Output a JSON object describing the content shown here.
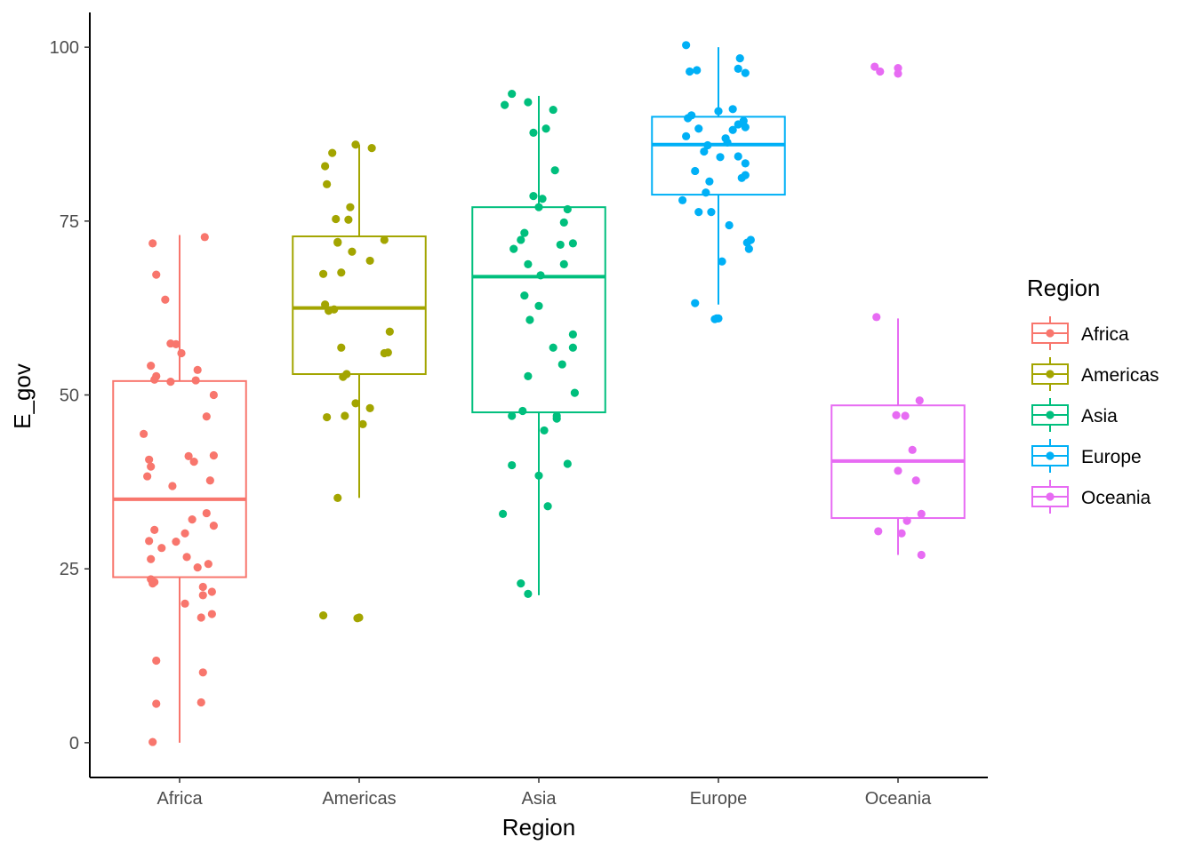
{
  "chart_data": {
    "type": "boxplot",
    "xlabel": "Region",
    "ylabel": "E_gov",
    "ylim": [
      -5,
      105
    ],
    "yticks": [
      0,
      25,
      50,
      75,
      100
    ],
    "grid": false,
    "legend": {
      "title": "Region",
      "position": "right"
    },
    "categories": [
      "Africa",
      "Americas",
      "Asia",
      "Europe",
      "Oceania"
    ],
    "colors": {
      "Africa": "#F8766D",
      "Americas": "#A3A500",
      "Asia": "#00BF7D",
      "Europe": "#00B0F6",
      "Oceania": "#E76BF3"
    },
    "boxes": [
      {
        "name": "Africa",
        "whisker_low": 0,
        "q1": 23.8,
        "median": 35.0,
        "q3": 52.0,
        "whisker_high": 73.0,
        "outliers": []
      },
      {
        "name": "Americas",
        "whisker_low": 35.2,
        "q1": 53.0,
        "median": 62.5,
        "q3": 72.8,
        "whisker_high": 86.0,
        "outliers": [
          18.3,
          17.9,
          18.0
        ]
      },
      {
        "name": "Asia",
        "whisker_low": 21.2,
        "q1": 47.5,
        "median": 67.0,
        "q3": 77.0,
        "whisker_high": 93.0,
        "outliers": []
      },
      {
        "name": "Europe",
        "whisker_low": 63.0,
        "q1": 78.8,
        "median": 86.0,
        "q3": 90.0,
        "whisker_high": 100.0,
        "outliers": []
      },
      {
        "name": "Oceania",
        "whisker_low": 27.0,
        "q1": 32.3,
        "median": 40.5,
        "q3": 48.5,
        "whisker_high": 61.0,
        "outliers": [
          97.2,
          96.5,
          97.0,
          96.2
        ]
      }
    ],
    "points": {
      "Africa": [
        [
          -0.15,
          71.8
        ],
        [
          0.14,
          72.7
        ],
        [
          -0.13,
          67.3
        ],
        [
          -0.08,
          63.7
        ],
        [
          -0.02,
          57.3
        ],
        [
          -0.05,
          57.4
        ],
        [
          0.01,
          56.0
        ],
        [
          0.1,
          53.6
        ],
        [
          -0.16,
          54.2
        ],
        [
          -0.13,
          52.7
        ],
        [
          -0.14,
          52.2
        ],
        [
          -0.05,
          51.9
        ],
        [
          0.09,
          52.1
        ],
        [
          0.19,
          50.0
        ],
        [
          0.15,
          46.9
        ],
        [
          -0.2,
          44.4
        ],
        [
          -0.17,
          40.7
        ],
        [
          -0.16,
          39.7
        ],
        [
          0.05,
          41.2
        ],
        [
          0.08,
          40.4
        ],
        [
          0.19,
          41.3
        ],
        [
          0.17,
          37.7
        ],
        [
          -0.18,
          38.3
        ],
        [
          -0.04,
          36.9
        ],
        [
          0.07,
          32.1
        ],
        [
          0.15,
          33.0
        ],
        [
          0.19,
          31.2
        ],
        [
          -0.14,
          30.6
        ],
        [
          0.03,
          30.1
        ],
        [
          -0.17,
          29.0
        ],
        [
          -0.1,
          28.0
        ],
        [
          -0.02,
          28.9
        ],
        [
          0.04,
          26.7
        ],
        [
          -0.16,
          26.4
        ],
        [
          0.16,
          25.7
        ],
        [
          0.1,
          25.2
        ],
        [
          -0.16,
          23.5
        ],
        [
          -0.15,
          22.9
        ],
        [
          -0.14,
          23.1
        ],
        [
          0.13,
          22.4
        ],
        [
          0.18,
          21.7
        ],
        [
          0.13,
          21.2
        ],
        [
          0.03,
          20.0
        ],
        [
          0.18,
          18.5
        ],
        [
          0.12,
          18.0
        ],
        [
          -0.13,
          11.8
        ],
        [
          0.13,
          10.1
        ],
        [
          -0.13,
          5.6
        ],
        [
          0.12,
          5.8
        ],
        [
          -0.15,
          0.1
        ]
      ],
      "Americas": [
        [
          -0.02,
          86.0
        ],
        [
          0.07,
          85.5
        ],
        [
          -0.15,
          84.8
        ],
        [
          -0.19,
          82.9
        ],
        [
          -0.18,
          80.3
        ],
        [
          -0.05,
          77.0
        ],
        [
          -0.13,
          75.3
        ],
        [
          -0.06,
          75.2
        ],
        [
          -0.12,
          72.0
        ],
        [
          0.14,
          72.3
        ],
        [
          -0.12,
          71.9
        ],
        [
          -0.04,
          70.6
        ],
        [
          0.06,
          69.3
        ],
        [
          -0.1,
          67.6
        ],
        [
          -0.2,
          67.4
        ],
        [
          -0.19,
          63.0
        ],
        [
          -0.14,
          62.3
        ],
        [
          -0.17,
          62.1
        ],
        [
          0.17,
          59.1
        ],
        [
          -0.1,
          56.8
        ],
        [
          0.14,
          56.0
        ],
        [
          0.16,
          56.1
        ],
        [
          -0.07,
          53.0
        ],
        [
          -0.09,
          52.6
        ],
        [
          -0.02,
          48.8
        ],
        [
          0.06,
          48.1
        ],
        [
          -0.18,
          46.8
        ],
        [
          -0.08,
          47.0
        ],
        [
          0.02,
          45.8
        ],
        [
          -0.12,
          35.2
        ],
        [
          -0.2,
          18.3
        ],
        [
          -0.01,
          17.9
        ],
        [
          0.0,
          18.0
        ]
      ],
      "Asia": [
        [
          -0.15,
          93.3
        ],
        [
          -0.19,
          91.7
        ],
        [
          -0.06,
          92.1
        ],
        [
          0.08,
          91.0
        ],
        [
          -0.03,
          87.7
        ],
        [
          0.04,
          88.3
        ],
        [
          0.09,
          82.3
        ],
        [
          -0.03,
          78.6
        ],
        [
          0.02,
          78.2
        ],
        [
          0.16,
          76.7
        ],
        [
          0.0,
          77.0
        ],
        [
          -0.08,
          73.3
        ],
        [
          0.14,
          74.8
        ],
        [
          -0.1,
          72.3
        ],
        [
          0.12,
          71.6
        ],
        [
          0.19,
          71.8
        ],
        [
          -0.14,
          71.0
        ],
        [
          0.14,
          68.8
        ],
        [
          -0.06,
          68.8
        ],
        [
          0.01,
          67.2
        ],
        [
          -0.08,
          64.3
        ],
        [
          0.0,
          62.8
        ],
        [
          -0.05,
          60.8
        ],
        [
          0.19,
          58.7
        ],
        [
          0.08,
          56.8
        ],
        [
          0.19,
          56.8
        ],
        [
          0.13,
          54.4
        ],
        [
          -0.06,
          52.7
        ],
        [
          0.2,
          50.3
        ],
        [
          -0.09,
          47.7
        ],
        [
          0.1,
          47.0
        ],
        [
          0.1,
          46.6
        ],
        [
          -0.15,
          47.0
        ],
        [
          0.03,
          44.9
        ],
        [
          -0.15,
          39.9
        ],
        [
          0.16,
          40.1
        ],
        [
          0.0,
          38.4
        ],
        [
          0.05,
          34.0
        ],
        [
          -0.2,
          32.9
        ],
        [
          -0.1,
          22.9
        ],
        [
          -0.06,
          21.4
        ]
      ],
      "Europe": [
        [
          -0.18,
          100.3
        ],
        [
          0.12,
          98.4
        ],
        [
          -0.12,
          96.7
        ],
        [
          -0.16,
          96.5
        ],
        [
          0.11,
          96.9
        ],
        [
          0.15,
          96.3
        ],
        [
          -0.17,
          89.8
        ],
        [
          -0.15,
          90.2
        ],
        [
          0.0,
          90.8
        ],
        [
          0.08,
          91.1
        ],
        [
          0.14,
          89.4
        ],
        [
          0.11,
          88.9
        ],
        [
          0.15,
          88.5
        ],
        [
          -0.11,
          88.3
        ],
        [
          0.08,
          88.1
        ],
        [
          0.04,
          86.9
        ],
        [
          -0.18,
          87.2
        ],
        [
          -0.06,
          85.9
        ],
        [
          0.05,
          86.3
        ],
        [
          -0.08,
          85.0
        ],
        [
          0.01,
          84.2
        ],
        [
          0.11,
          84.3
        ],
        [
          0.15,
          83.3
        ],
        [
          -0.13,
          82.2
        ],
        [
          0.15,
          81.6
        ],
        [
          0.13,
          81.2
        ],
        [
          -0.05,
          80.7
        ],
        [
          -0.07,
          79.1
        ],
        [
          -0.2,
          78.0
        ],
        [
          -0.11,
          76.3
        ],
        [
          -0.04,
          76.3
        ],
        [
          0.06,
          74.4
        ],
        [
          0.18,
          72.3
        ],
        [
          0.16,
          71.9
        ],
        [
          0.17,
          71.0
        ],
        [
          0.02,
          69.2
        ],
        [
          -0.13,
          63.2
        ],
        [
          -0.01,
          61.0
        ],
        [
          -0.02,
          60.9
        ],
        [
          0.0,
          61.0
        ]
      ],
      "Oceania": [
        [
          -0.12,
          61.2
        ],
        [
          0.12,
          49.2
        ],
        [
          -0.01,
          47.1
        ],
        [
          0.04,
          47.0
        ],
        [
          0.08,
          42.1
        ],
        [
          0.0,
          39.1
        ],
        [
          0.1,
          37.7
        ],
        [
          0.13,
          32.9
        ],
        [
          0.05,
          31.9
        ],
        [
          -0.11,
          30.4
        ],
        [
          0.02,
          30.1
        ],
        [
          0.13,
          27.0
        ],
        [
          -0.13,
          97.2
        ],
        [
          -0.1,
          96.5
        ],
        [
          0.0,
          97.0
        ],
        [
          0.0,
          96.2
        ]
      ]
    }
  }
}
